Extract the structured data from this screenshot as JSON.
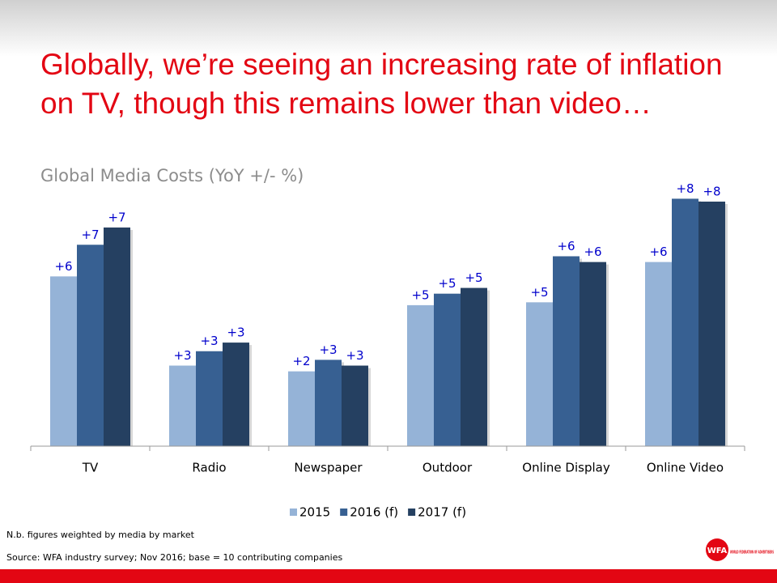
{
  "title": "Globally, we’re seeing an increasing rate of inflation on TV, though this remains lower than video…",
  "chart_data": {
    "type": "bar",
    "title": "Global Media Costs (YoY +/- %)",
    "categories": [
      "TV",
      "Radio",
      "Newspaper",
      "Outdoor",
      "Online Display",
      "Online Video"
    ],
    "series": [
      {
        "name": "2015",
        "color": "#95b3d7",
        "values": [
          5.7,
          2.6,
          2.4,
          4.7,
          4.8,
          6.2
        ],
        "value_labels": [
          "+6",
          "+3",
          "+2",
          "+5",
          "+5",
          "+6"
        ]
      },
      {
        "name": "2016 (f)",
        "color": "#376092",
        "values": [
          6.8,
          3.1,
          2.8,
          5.1,
          6.4,
          8.4
        ],
        "value_labels": [
          "+7",
          "+3",
          "+3",
          "+5",
          "+6",
          "+8"
        ]
      },
      {
        "name": "2017 (f)",
        "color": "#254061",
        "values": [
          7.4,
          3.4,
          2.6,
          5.3,
          6.2,
          8.3
        ],
        "value_labels": [
          "+7",
          "+3",
          "+3",
          "+5",
          "+6",
          "+8"
        ]
      }
    ],
    "ylim": [
      -0.2,
      9.2
    ],
    "grid": false,
    "legend": "bottom"
  },
  "notes": [
    "N.b. figures weighted by media by market",
    "Source: WFA industry survey; Nov 2016; base = 10 contributing  companies"
  ],
  "logo": {
    "mark": "WFA",
    "text": "WORLD FEDERATION OF ADVERTISERS"
  }
}
